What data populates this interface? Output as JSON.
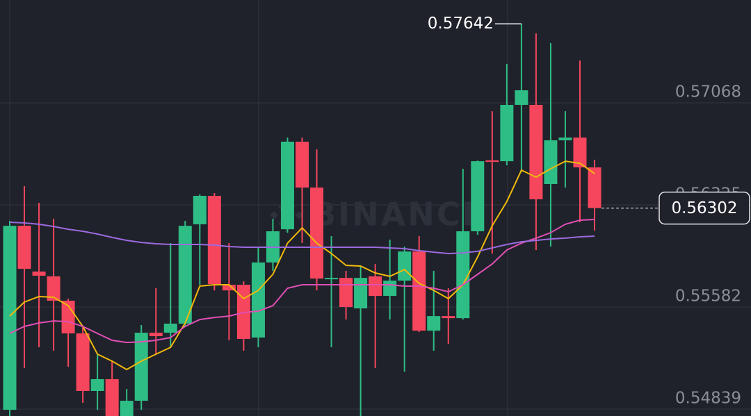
{
  "chart_data": {
    "type": "candlestick",
    "watermark": "BINANCE",
    "up_color": "#2ebd85",
    "down_color": "#f6465d",
    "open": [
      0.54834,
      0.56173,
      0.5584,
      0.55805,
      0.55628,
      0.5539,
      0.54971,
      0.55057,
      0.54789,
      0.549,
      0.55395,
      0.55395,
      0.55461,
      0.56184,
      0.56391,
      0.55744,
      0.55744,
      0.5536,
      0.55906,
      0.56148,
      0.56785,
      0.56451,
      0.55784,
      0.55794,
      0.55572,
      0.55805,
      0.55663,
      0.55774,
      0.55986,
      0.5541,
      0.55516,
      0.55501,
      0.56133,
      0.56649,
      0.56643,
      0.57053,
      0.57053,
      0.56477,
      0.56795,
      0.56815,
      0.56598
    ],
    "high": [
      0.56209,
      0.56462,
      0.5634,
      0.56224,
      0.55643,
      0.55441,
      0.55239,
      0.55188,
      0.54986,
      0.55451,
      0.55719,
      0.56047,
      0.56209,
      0.56401,
      0.56411,
      0.56047,
      0.55769,
      0.56022,
      0.56224,
      0.56815,
      0.56815,
      0.56729,
      0.56098,
      0.55845,
      0.55885,
      0.55895,
      0.56072,
      0.56022,
      0.56098,
      0.55845,
      0.55719,
      0.56588,
      0.56648,
      0.57007,
      0.57351,
      0.57642,
      0.57573,
      0.57503,
      0.57007,
      0.57376,
      0.56654
    ],
    "low": [
      0.54789,
      0.55137,
      0.55289,
      0.55264,
      0.55147,
      0.54885,
      0.54834,
      0.54789,
      0.54789,
      0.54834,
      0.55239,
      0.55289,
      0.55441,
      0.55744,
      0.55703,
      0.5534,
      0.55264,
      0.55289,
      0.55845,
      0.56123,
      0.56047,
      0.55703,
      0.55289,
      0.55491,
      0.54789,
      0.55137,
      0.55491,
      0.55112,
      0.554,
      0.55264,
      0.55314,
      0.55491,
      0.56108,
      0.55971,
      0.56613,
      0.56563,
      0.55997,
      0.56022,
      0.56451,
      0.56199,
      0.56138
    ],
    "close": [
      0.56173,
      0.5586,
      0.5581,
      0.55628,
      0.5539,
      0.54971,
      0.55057,
      0.54789,
      0.549,
      0.55395,
      0.5537,
      0.55461,
      0.56173,
      0.56391,
      0.55749,
      0.55703,
      0.5535,
      0.55906,
      0.56133,
      0.56785,
      0.56451,
      0.55789,
      0.55794,
      0.55582,
      0.55794,
      0.55663,
      0.55774,
      0.55986,
      0.5541,
      0.55516,
      0.55501,
      0.56133,
      0.56643,
      0.56638,
      0.57053,
      0.57159,
      0.56366,
      0.56795,
      0.56815,
      0.56598,
      0.56302
    ],
    "series": [
      {
        "color": "#f0b90b",
        "values": [
          0.55516,
          0.55618,
          0.55658,
          0.55653,
          0.55592,
          0.55441,
          0.55239,
          0.55188,
          0.55127,
          0.55188,
          0.55239,
          0.55289,
          0.55466,
          0.55734,
          0.55744,
          0.55744,
          0.55643,
          0.55703,
          0.5582,
          0.56047,
          0.56158,
          0.56047,
          0.55971,
          0.55885,
          0.5588,
          0.5583,
          0.55805,
          0.55855,
          0.55754,
          0.55703,
          0.55643,
          0.55744,
          0.55946,
          0.56173,
          0.5635,
          0.56578,
          0.56527,
          0.56588,
          0.56643,
          0.56628,
          0.56553
        ]
      },
      {
        "color": "#e04fb5",
        "values": [
          0.5539,
          0.55441,
          0.55466,
          0.55481,
          0.55476,
          0.55441,
          0.5539,
          0.5534,
          0.55324,
          0.55329,
          0.5534,
          0.5536,
          0.55441,
          0.55491,
          0.55506,
          0.55516,
          0.55542,
          0.55552,
          0.55592,
          0.55719,
          0.55744,
          0.55744,
          0.55744,
          0.55744,
          0.55744,
          0.55744,
          0.55744,
          0.55734,
          0.55734,
          0.55719,
          0.55693,
          0.55744,
          0.5582,
          0.55895,
          0.55997,
          0.56047,
          0.56083,
          0.56123,
          0.56184,
          0.56214,
          0.56219
        ]
      },
      {
        "color": "#9c6ade",
        "values": [
          0.56199,
          0.56194,
          0.56184,
          0.56168,
          0.56148,
          0.56133,
          0.56113,
          0.56088,
          0.56067,
          0.56052,
          0.56042,
          0.56037,
          0.56037,
          0.56037,
          0.56032,
          0.56022,
          0.56017,
          0.56017,
          0.56017,
          0.56017,
          0.56017,
          0.56017,
          0.56017,
          0.56017,
          0.56017,
          0.56017,
          0.56012,
          0.56007,
          0.55992,
          0.55981,
          0.55971,
          0.55976,
          0.55987,
          0.56012,
          0.56037,
          0.56057,
          0.56067,
          0.56077,
          0.56083,
          0.56093,
          0.56098
        ]
      }
    ],
    "ylim": [
      0.54789,
      0.57816
    ],
    "yticks": [
      0.54839,
      0.55582,
      0.56325,
      0.57068
    ],
    "grid": true
  }
}
